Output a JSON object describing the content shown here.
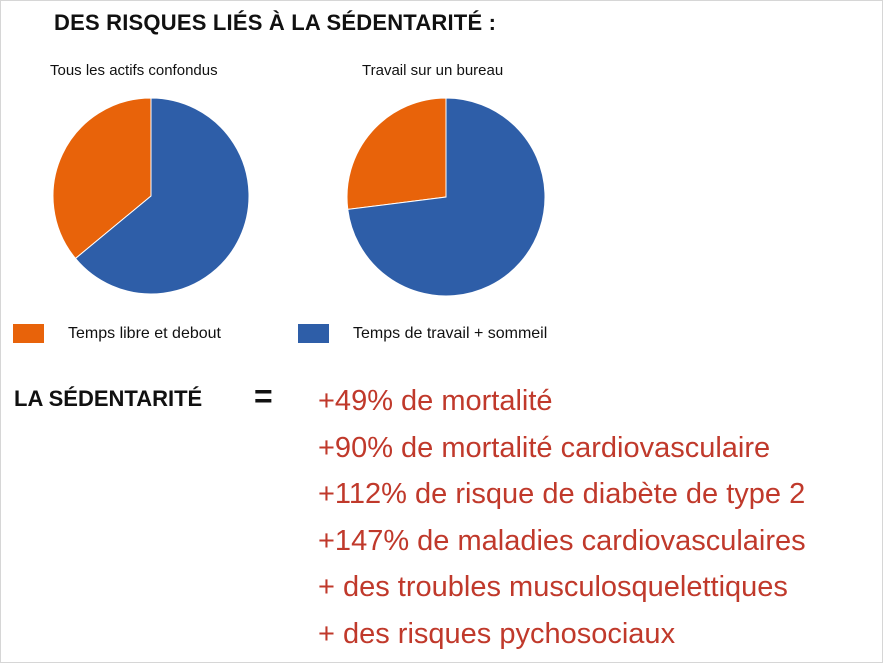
{
  "title": "DES RISQUES LIÉS À LA SÉDENTARITÉ :",
  "colors": {
    "orange": "#e8630a",
    "blue": "#2e5ea8",
    "red": "#c0392b"
  },
  "chart_data": [
    {
      "type": "pie",
      "title": "Tous les actifs confondus",
      "slices": [
        {
          "label": "Temps libre et debout",
          "value": 36,
          "color": "#e8630a"
        },
        {
          "label": "Temps de travail + sommeil",
          "value": 64,
          "color": "#2e5ea8"
        }
      ]
    },
    {
      "type": "pie",
      "title": "Travail sur un bureau",
      "slices": [
        {
          "label": "Temps libre et debout",
          "value": 27,
          "color": "#e8630a"
        },
        {
          "label": "Temps de travail + sommeil",
          "value": 73,
          "color": "#2e5ea8"
        }
      ]
    }
  ],
  "legend": [
    {
      "label": "Temps libre et debout",
      "color": "#e8630a"
    },
    {
      "label": "Temps de travail + sommeil",
      "color": "#2e5ea8"
    }
  ],
  "equation": {
    "lhs": "LA SÉDENTARITÉ",
    "operator": "=",
    "effects": [
      "+49% de mortalité",
      "+90% de mortalité cardiovasculaire",
      "+112% de risque de diabète de type 2",
      "+147% de maladies cardiovasculaires",
      "+ des troubles musculosquelettiques",
      "+ des risques pychosociaux"
    ]
  }
}
